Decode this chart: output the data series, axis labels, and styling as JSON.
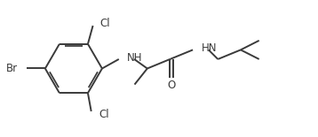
{
  "bg_color": "#ffffff",
  "line_color": "#3a3a3a",
  "text_color": "#3a3a3a",
  "line_width": 1.4,
  "font_size": 8.5,
  "figsize": [
    3.58,
    1.55
  ],
  "dpi": 100,
  "xlim": [
    0,
    9.5
  ],
  "ylim": [
    0,
    4.0
  ]
}
